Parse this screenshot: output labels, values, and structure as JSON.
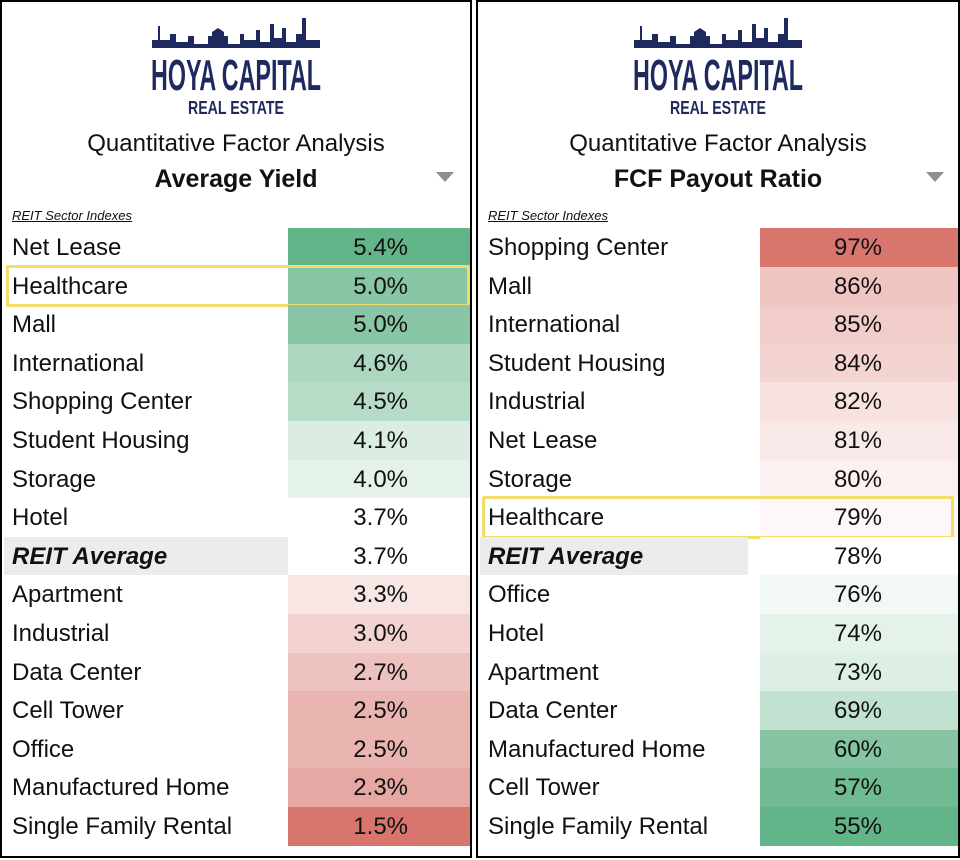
{
  "brand": {
    "name": "HOYA CAPITAL",
    "sub": "REAL ESTATE"
  },
  "colors": {
    "brand_navy": "#1e2a5e",
    "high_green": "#64b489",
    "high_red": "#d8766e",
    "highlight_box": "#f2dc6b",
    "average_row_bg": "#ececec"
  },
  "chart_data": [
    {
      "type": "table",
      "title": "Quantitative Factor Analysis",
      "subtitle": "Average Yield",
      "section_label": "REIT Sector Indexes",
      "unit": "%",
      "rows": [
        {
          "label": "Net Lease",
          "value": 5.4,
          "display": "5.4%"
        },
        {
          "label": "Healthcare",
          "value": 5.0,
          "display": "5.0%",
          "highlighted": true
        },
        {
          "label": "Mall",
          "value": 5.0,
          "display": "5.0%"
        },
        {
          "label": "International",
          "value": 4.6,
          "display": "4.6%"
        },
        {
          "label": "Shopping Center",
          "value": 4.5,
          "display": "4.5%"
        },
        {
          "label": "Student Housing",
          "value": 4.1,
          "display": "4.1%"
        },
        {
          "label": "Storage",
          "value": 4.0,
          "display": "4.0%"
        },
        {
          "label": "Hotel",
          "value": 3.7,
          "display": "3.7%"
        },
        {
          "label": "REIT Average",
          "value": 3.7,
          "display": "3.7%",
          "average": true
        },
        {
          "label": "Apartment",
          "value": 3.3,
          "display": "3.3%"
        },
        {
          "label": "Industrial",
          "value": 3.0,
          "display": "3.0%"
        },
        {
          "label": "Data Center",
          "value": 2.7,
          "display": "2.7%"
        },
        {
          "label": "Cell Tower",
          "value": 2.5,
          "display": "2.5%"
        },
        {
          "label": "Office",
          "value": 2.5,
          "display": "2.5%"
        },
        {
          "label": "Manufactured Home",
          "value": 2.3,
          "display": "2.3%"
        },
        {
          "label": "Single Family Rental",
          "value": 1.5,
          "display": "1.5%"
        }
      ],
      "color_scale": {
        "high": "green",
        "low": "red"
      }
    },
    {
      "type": "table",
      "title": "Quantitative Factor Analysis",
      "subtitle": "FCF Payout Ratio",
      "section_label": "REIT Sector Indexes",
      "unit": "%",
      "rows": [
        {
          "label": "Shopping Center",
          "value": 97,
          "display": "97%"
        },
        {
          "label": "Mall",
          "value": 86,
          "display": "86%"
        },
        {
          "label": "International",
          "value": 85,
          "display": "85%"
        },
        {
          "label": "Student Housing",
          "value": 84,
          "display": "84%"
        },
        {
          "label": "Industrial",
          "value": 82,
          "display": "82%"
        },
        {
          "label": "Net Lease",
          "value": 81,
          "display": "81%"
        },
        {
          "label": "Storage",
          "value": 80,
          "display": "80%"
        },
        {
          "label": "Healthcare",
          "value": 79,
          "display": "79%",
          "highlighted": true
        },
        {
          "label": "REIT Average",
          "value": 78,
          "display": "78%",
          "average": true
        },
        {
          "label": "Office",
          "value": 76,
          "display": "76%"
        },
        {
          "label": "Hotel",
          "value": 74,
          "display": "74%"
        },
        {
          "label": "Apartment",
          "value": 73,
          "display": "73%"
        },
        {
          "label": "Data Center",
          "value": 69,
          "display": "69%"
        },
        {
          "label": "Manufactured Home",
          "value": 60,
          "display": "60%"
        },
        {
          "label": "Cell Tower",
          "value": 57,
          "display": "57%"
        },
        {
          "label": "Single Family Rental",
          "value": 55,
          "display": "55%"
        }
      ],
      "color_scale": {
        "high": "red",
        "low": "green"
      }
    }
  ]
}
